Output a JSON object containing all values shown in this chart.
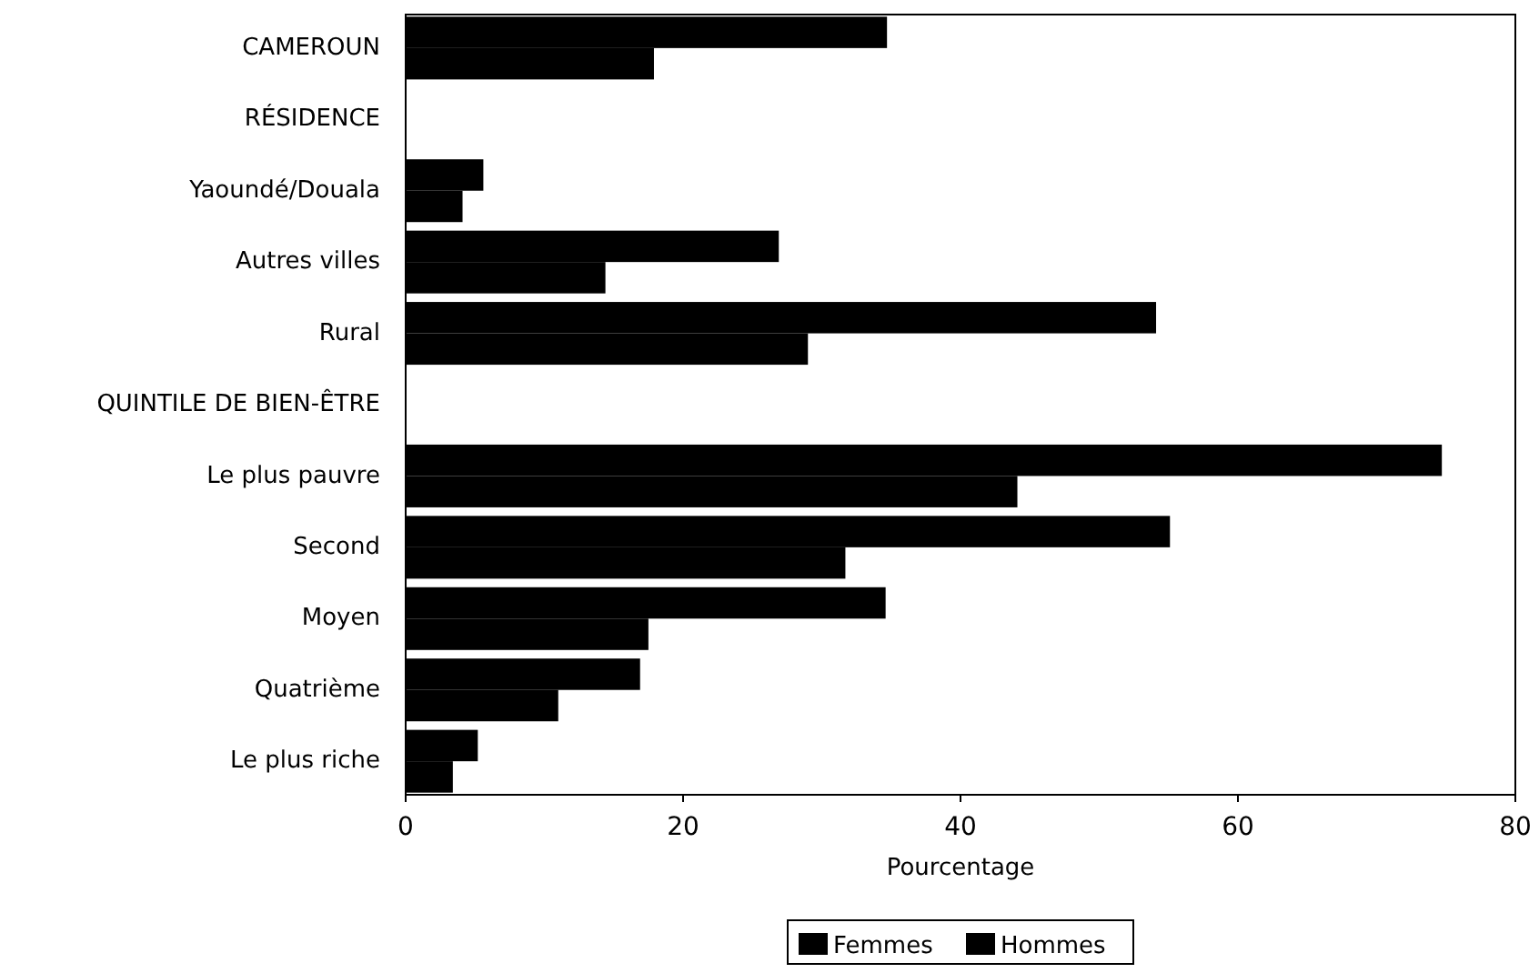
{
  "chart_data": {
    "type": "bar",
    "orientation": "horizontal",
    "xlabel": "Pourcentage",
    "categories": [
      "CAMEROUN",
      "RÉSIDENCE",
      "Yaoundé/Douala",
      "Autres villes",
      "Rural",
      "QUINTILE DE BIEN-ÊTRE",
      "Le plus pauvre",
      "Second",
      "Moyen",
      "Quatrième",
      "Le plus riche"
    ],
    "series": [
      {
        "name": "Femmes",
        "color": "#000000",
        "values": [
          34.7,
          null,
          5.6,
          26.9,
          54.1,
          null,
          74.7,
          55.1,
          34.6,
          16.9,
          5.2
        ]
      },
      {
        "name": "Hommes",
        "color": "#000000",
        "values": [
          17.9,
          null,
          4.1,
          14.4,
          29.0,
          null,
          44.1,
          31.7,
          17.5,
          11.0,
          3.4
        ]
      }
    ],
    "xlim": [
      0,
      80
    ],
    "xticks": [
      0,
      20,
      40,
      60,
      80
    ],
    "grid": false,
    "legend": "bottom"
  }
}
